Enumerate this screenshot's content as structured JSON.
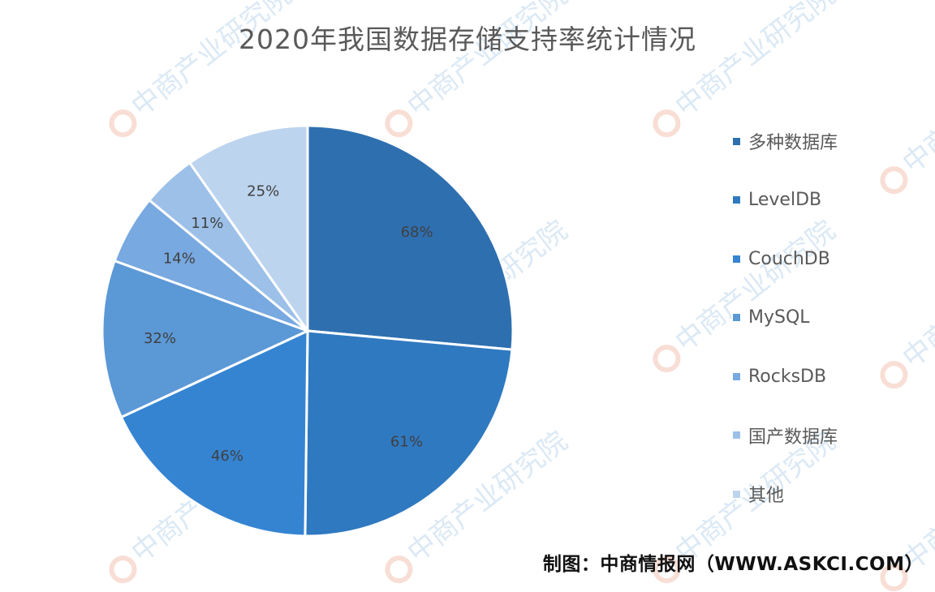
{
  "chart_data": {
    "type": "pie",
    "title": "2020年我国数据存储支持率统计情况",
    "categories": [
      "多种数据库",
      "LevelDB",
      "CouchDB",
      "MySQL",
      "RocksDB",
      "国产数据库",
      "其他"
    ],
    "values": [
      68,
      61,
      46,
      32,
      14,
      11,
      25
    ],
    "value_labels": [
      "68%",
      "61%",
      "46%",
      "32%",
      "14%",
      "11%",
      "25%"
    ],
    "colors": [
      "#2e6fb0",
      "#2f79c0",
      "#3584d2",
      "#5b98d6",
      "#78a9e0",
      "#9cc0e8",
      "#bdd4ee"
    ],
    "legend_position": "right"
  },
  "source_text": "制图：中商情报网（WWW.ASKCI.COM）",
  "watermark_text": "中商产业研究院"
}
